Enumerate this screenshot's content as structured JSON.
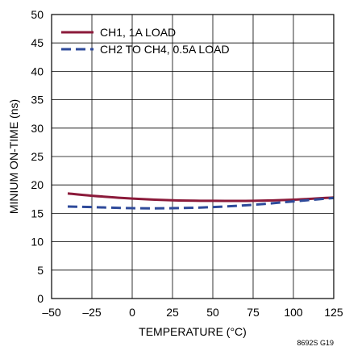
{
  "chart_data": {
    "type": "line",
    "xlabel": "TEMPERATURE (°C)",
    "ylabel": "MINIUM ON-TIME (ns)",
    "xlim": [
      -50,
      125
    ],
    "ylim": [
      0,
      50
    ],
    "xticks": [
      -50,
      -25,
      0,
      25,
      50,
      75,
      100,
      125
    ],
    "yticks": [
      0,
      5,
      10,
      15,
      20,
      25,
      30,
      35,
      40,
      45,
      50
    ],
    "xtick_labels": [
      "–50",
      "–25",
      "0",
      "25",
      "50",
      "75",
      "100",
      "125"
    ],
    "ytick_labels": [
      "0",
      "5",
      "10",
      "15",
      "20",
      "25",
      "30",
      "35",
      "40",
      "45",
      "50"
    ],
    "grid": true,
    "legend_position": "top-left",
    "series": [
      {
        "name": "CH1, 1A LOAD",
        "color": "#8B1A3A",
        "style": "solid",
        "x": [
          -40,
          -25,
          0,
          25,
          50,
          75,
          100,
          125
        ],
        "y": [
          18.5,
          18.1,
          17.6,
          17.3,
          17.2,
          17.2,
          17.4,
          17.8
        ]
      },
      {
        "name": "CH2 TO CH4, 0.5A LOAD",
        "color": "#2E4A9A",
        "style": "dashed",
        "x": [
          -40,
          -25,
          0,
          25,
          50,
          75,
          100,
          125
        ],
        "y": [
          16.2,
          16.1,
          15.9,
          15.9,
          16.1,
          16.5,
          17.1,
          17.7
        ]
      }
    ]
  },
  "figure_id": "8692S G19"
}
